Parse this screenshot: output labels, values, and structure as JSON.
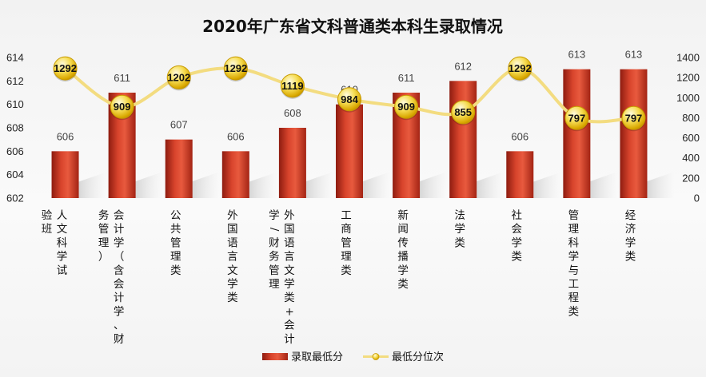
{
  "chart_data": {
    "type": "bar",
    "title": "2020年广东省文科普通类本科生录取情况",
    "categories": [
      [
        "人文科学试",
        "验班"
      ],
      [
        "会计学（含会计学、财",
        "务管理）"
      ],
      [
        "公共管理类"
      ],
      [
        "外国语言文学类"
      ],
      [
        "外国语言文学类+会计",
        "学/财务管理"
      ],
      [
        "工商管理类"
      ],
      [
        "新闻传播学类"
      ],
      [
        "法学类"
      ],
      [
        "社会学类"
      ],
      [
        "管理科学与工程类"
      ],
      [
        "经济学类"
      ]
    ],
    "series": [
      {
        "name": "录取最低分",
        "type": "bar",
        "axis": "left",
        "color": "#c0392b",
        "values": [
          606,
          611,
          607,
          606,
          608,
          610,
          611,
          612,
          606,
          613,
          613
        ]
      },
      {
        "name": "最低分位次",
        "type": "line",
        "axis": "right",
        "color": "#f0d77a",
        "values": [
          1292,
          909,
          1202,
          1292,
          1119,
          984,
          909,
          855,
          1292,
          797,
          797
        ]
      }
    ],
    "y_left": {
      "min": 602,
      "max": 614,
      "ticks": [
        602,
        604,
        606,
        608,
        610,
        612,
        614
      ]
    },
    "y_right": {
      "min": 0,
      "max": 1400,
      "ticks": [
        0,
        200,
        400,
        600,
        800,
        1000,
        1200,
        1400
      ]
    },
    "grid": false,
    "legend": "bottom"
  }
}
